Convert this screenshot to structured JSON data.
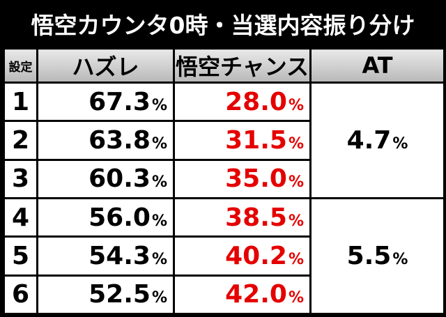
{
  "title": "悟空カウンタ0時・当選内容振り分け",
  "headers": {
    "setting": "設定",
    "hazure": "ハズレ",
    "chance": "悟空チャンス",
    "at": "AT"
  },
  "rows": [
    {
      "setting": "1",
      "hazure": "67.3",
      "chance": "28.0"
    },
    {
      "setting": "2",
      "hazure": "63.8",
      "chance": "31.5"
    },
    {
      "setting": "3",
      "hazure": "60.3",
      "chance": "35.0"
    },
    {
      "setting": "4",
      "hazure": "56.0",
      "chance": "38.5"
    },
    {
      "setting": "5",
      "hazure": "54.3",
      "chance": "40.2"
    },
    {
      "setting": "6",
      "hazure": "52.5",
      "chance": "42.0"
    }
  ],
  "at_groups": [
    {
      "settings": "1-3",
      "value": "4.7"
    },
    {
      "settings": "4-6",
      "value": "5.5"
    }
  ],
  "unit": "%",
  "colors": {
    "background": "#000000",
    "chance_text": "#e50000",
    "header_bg": "#d0d0d0"
  }
}
